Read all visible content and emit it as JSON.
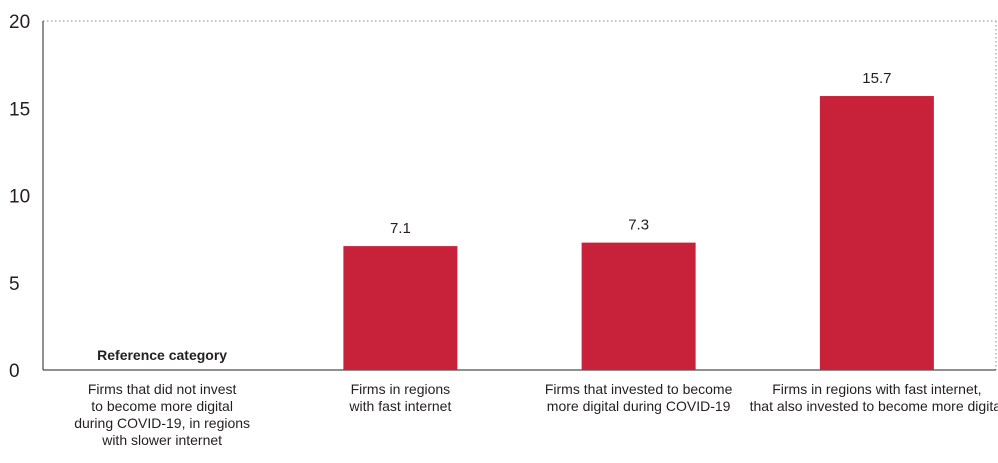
{
  "chart_data": {
    "type": "bar",
    "categories": [
      [
        "Firms that did not invest",
        "to become more digital",
        "during COVID-19, in regions",
        "with slower internet"
      ],
      [
        "Firms in regions",
        "with fast internet"
      ],
      [
        "Firms that invested to become",
        "more digital during COVID-19"
      ],
      [
        "Firms in regions with fast internet,",
        "that also invested to become more digital"
      ]
    ],
    "values": [
      null,
      7.1,
      7.3,
      15.7
    ],
    "data_labels": [
      "",
      "7.1",
      "7.3",
      "15.7"
    ],
    "reference_label": "Reference category",
    "ylim": [
      0,
      20
    ],
    "yticks": [
      "0",
      "5",
      "10",
      "15",
      "20"
    ],
    "title": "",
    "xlabel": "",
    "ylabel": "",
    "grid": false,
    "bar_color": "#c8223a",
    "frame_style": "dotted"
  }
}
